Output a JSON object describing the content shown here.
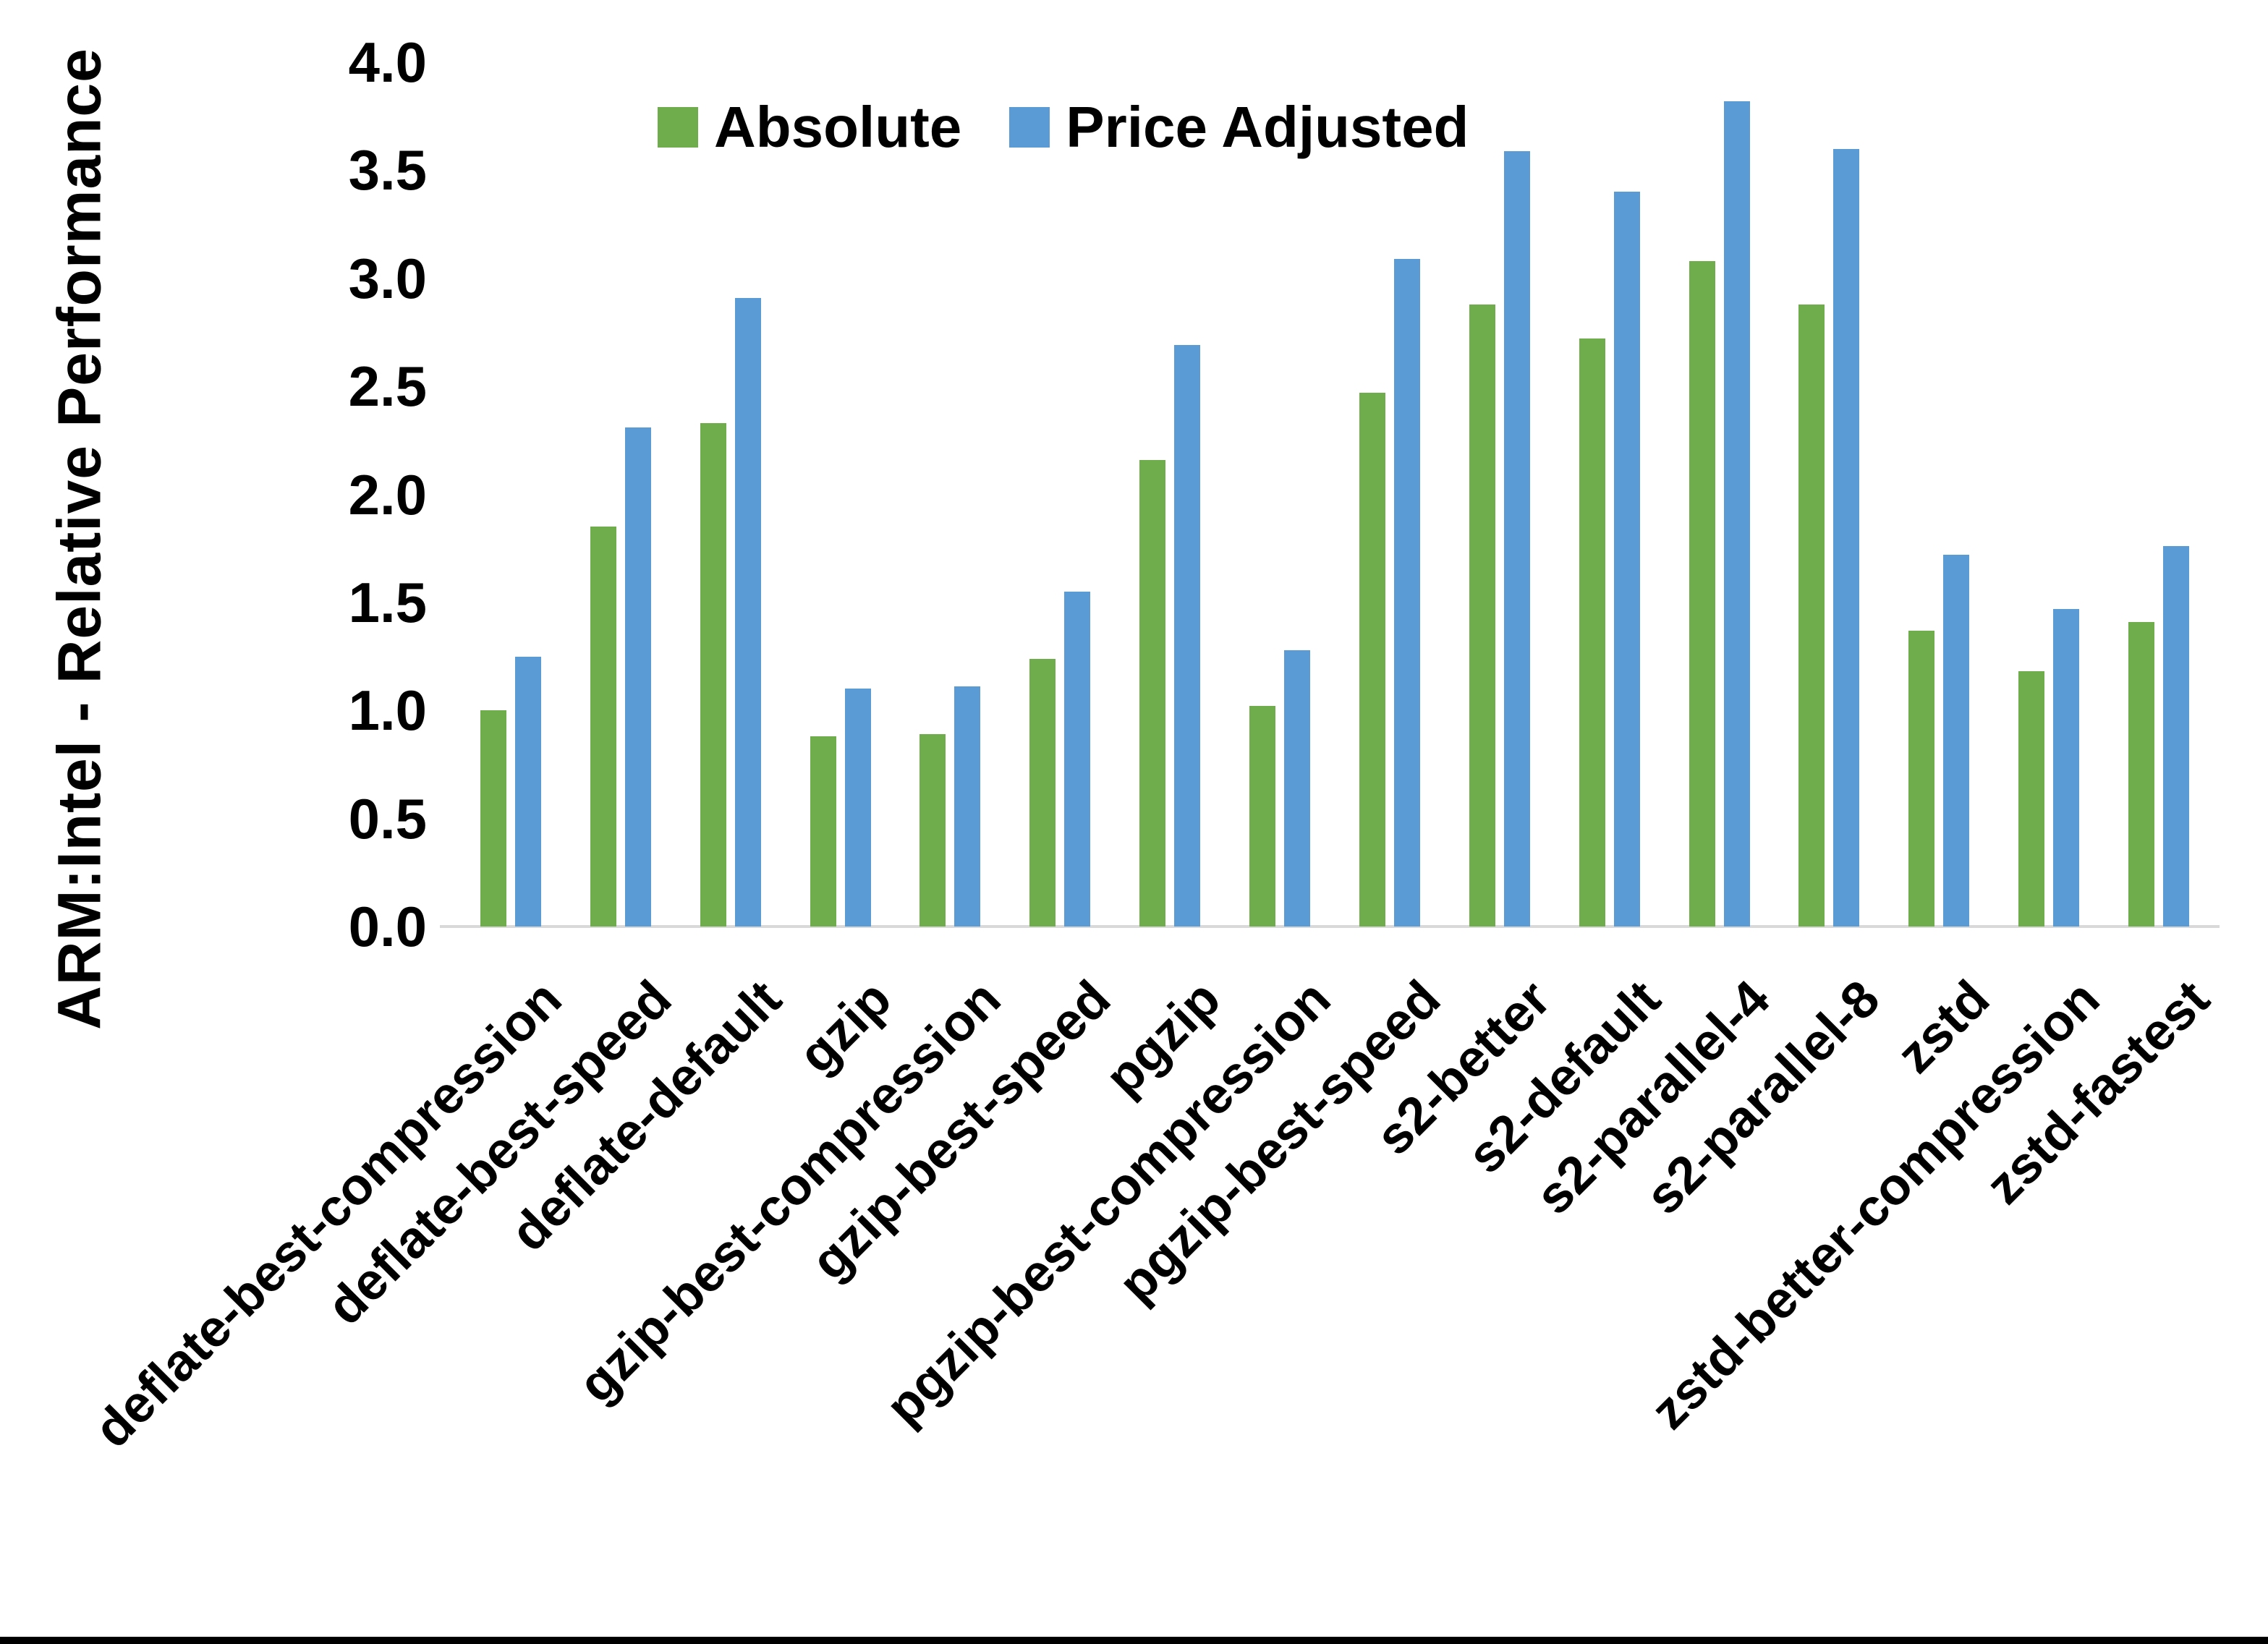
{
  "chart_data": {
    "type": "bar",
    "title": "",
    "xlabel": "",
    "ylabel": "ARM:Intel - Relative Performance",
    "ylim": [
      0.0,
      4.0
    ],
    "ytick_step": 0.5,
    "yticks": [
      "0.0",
      "0.5",
      "1.0",
      "1.5",
      "2.0",
      "2.5",
      "3.0",
      "3.5",
      "4.0"
    ],
    "grid": false,
    "legend_position": "top-center",
    "axis_line_color": "#d9d9d9",
    "categories": [
      "deflate-best-compression",
      "deflate-best-speed",
      "deflate-default",
      "gzip",
      "gzip-best-compression",
      "gzip-best-speed",
      "pgzip",
      "pgzip-best-compression",
      "pgzip-best-speed",
      "s2-better",
      "s2-default",
      "s2-parallel-4",
      "s2-parallel-8",
      "zstd",
      "zstd-better-compression",
      "zstd-fastest"
    ],
    "series": [
      {
        "name": "Absolute",
        "color": "#6fac4c",
        "values": [
          1.0,
          1.85,
          2.33,
          0.88,
          0.89,
          1.24,
          2.16,
          1.02,
          2.47,
          2.88,
          2.72,
          3.08,
          2.88,
          1.37,
          1.18,
          1.41
        ]
      },
      {
        "name": "Price Adjusted",
        "color": "#5b9bd5",
        "values": [
          1.25,
          2.31,
          2.91,
          1.1,
          1.11,
          1.55,
          2.69,
          1.28,
          3.09,
          3.59,
          3.4,
          3.82,
          3.6,
          1.72,
          1.47,
          1.76
        ]
      }
    ]
  }
}
